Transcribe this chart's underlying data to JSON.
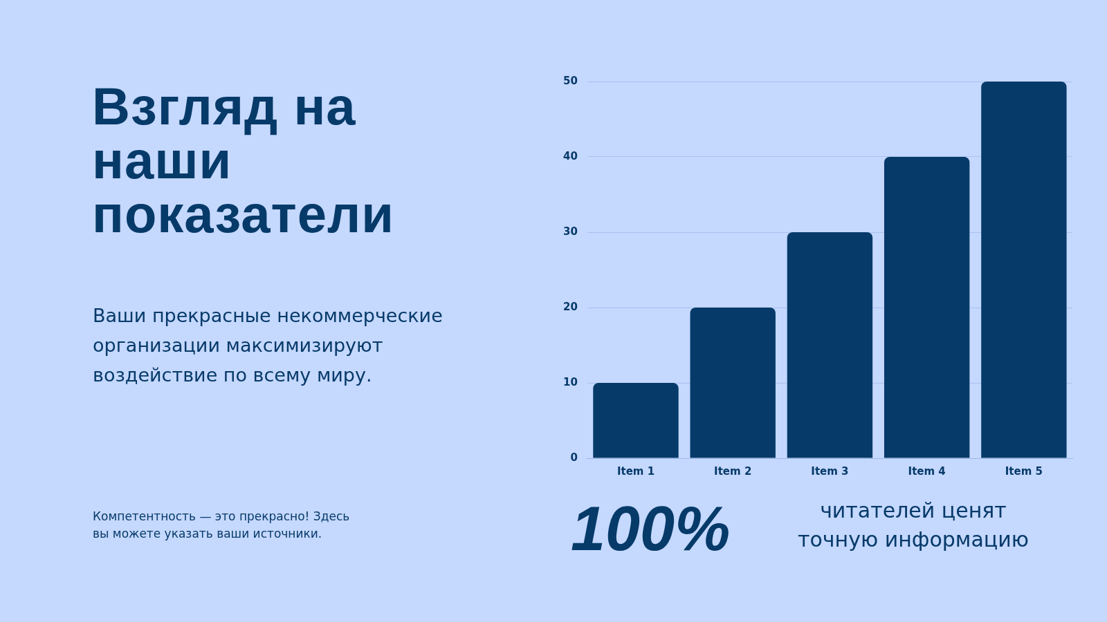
{
  "chart_data": {
    "type": "bar",
    "title": "Взгляд на наши показатели",
    "subtitle": "Ваши прекрасные некоммерческие организации максимизируют воздействие по всему миру.",
    "categories": [
      "Item 1",
      "Item 2",
      "Item 3",
      "Item 4",
      "Item 5"
    ],
    "values": [
      10,
      20,
      30,
      40,
      50
    ],
    "color": "#063a69",
    "ylim": [
      0,
      50
    ],
    "yticks": [
      0,
      10,
      20,
      30,
      40,
      50
    ],
    "grid": "y",
    "annotations": [
      "Компетентность — это прекрасно! Здесь вы можете указать ваши источники.",
      "100%",
      "читателей ценят точную информацию"
    ]
  }
}
